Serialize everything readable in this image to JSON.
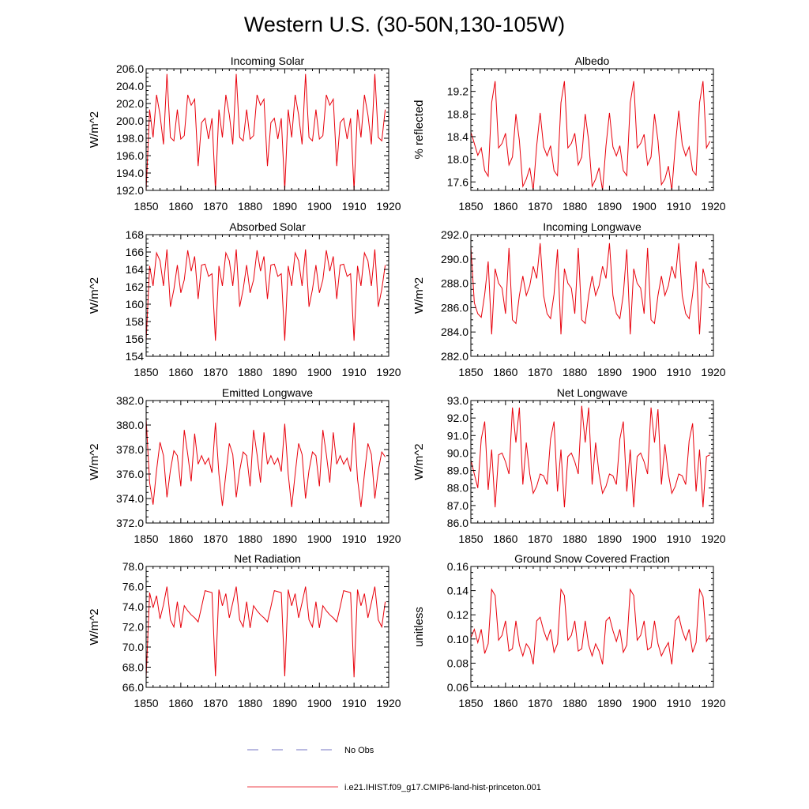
{
  "figure": {
    "title": "Western U.S. (30-50N,130-105W)"
  },
  "legend": {
    "items": [
      {
        "label": "No Obs",
        "color": "#4a4ab0",
        "style": "dashed"
      },
      {
        "label": "i.e21.IHIST.f09_g17.CMIP6-land-hist-princeton.001",
        "color": "#e8000b",
        "style": "solid"
      }
    ]
  },
  "chart_data": [
    {
      "type": "line",
      "title": "Incoming Solar",
      "xlabel": "",
      "ylabel": "W/m^2",
      "xlim": [
        1850,
        1920
      ],
      "ylim": [
        192,
        206
      ],
      "xticks": [
        1850,
        1860,
        1870,
        1880,
        1890,
        1900,
        1910,
        1920
      ],
      "yticks": [
        192,
        194,
        196,
        198,
        200,
        202,
        204,
        206
      ],
      "ytick_labels": [
        "192.0",
        "194.0",
        "196.0",
        "198.0",
        "200.0",
        "202.0",
        "204.0",
        "206.0"
      ],
      "grid": false,
      "series": [
        {
          "color": "#e8000b",
          "x_start": 1850,
          "x_step": 1,
          "values": [
            192.0,
            201.3,
            198.1,
            203.0,
            200.7,
            197.3,
            205.4,
            198.1,
            197.7,
            201.3,
            197.9,
            198.3,
            203.0,
            201.8,
            202.5,
            194.8,
            199.8,
            200.3,
            197.9,
            200.3,
            192.0,
            201.3,
            198.1,
            203.0,
            200.7,
            197.3,
            205.4,
            198.1,
            197.7,
            201.3,
            197.9,
            198.3,
            203.0,
            201.8,
            202.5,
            194.8,
            199.8,
            200.3,
            197.9,
            200.3,
            192.0,
            201.3,
            198.1,
            203.0,
            200.7,
            197.3,
            205.4,
            198.1,
            197.7,
            201.3,
            197.9,
            198.3,
            203.0,
            201.8,
            202.5,
            194.8,
            199.8,
            200.3,
            197.9,
            200.3,
            192.0,
            201.3,
            198.1,
            203.0,
            200.7,
            197.3,
            205.4,
            198.1,
            197.7,
            201.3
          ]
        }
      ]
    },
    {
      "type": "line",
      "title": "Albedo",
      "xlabel": "",
      "ylabel": "% reflected",
      "xlim": [
        1850,
        1920
      ],
      "ylim": [
        17.45,
        19.6
      ],
      "xticks": [
        1850,
        1860,
        1870,
        1880,
        1890,
        1900,
        1910,
        1920
      ],
      "yticks": [
        17.6,
        18.0,
        18.4,
        18.8,
        19.2
      ],
      "ytick_labels": [
        "17.6",
        "18.0",
        "18.4",
        "18.8",
        "19.2"
      ],
      "grid": false,
      "series": [
        {
          "color": "#e8000b",
          "x_start": 1850,
          "x_step": 1,
          "values": [
            18.48,
            18.28,
            18.07,
            18.2,
            17.8,
            17.7,
            19.0,
            19.38,
            18.2,
            18.28,
            18.46,
            17.9,
            18.04,
            18.8,
            18.33,
            17.52,
            17.65,
            17.85,
            17.45,
            18.24,
            18.82,
            18.22,
            18.06,
            18.24,
            17.8,
            17.71,
            19.0,
            19.38,
            18.2,
            18.28,
            18.46,
            17.9,
            18.04,
            18.8,
            18.33,
            17.52,
            17.65,
            17.85,
            17.45,
            18.24,
            18.82,
            18.22,
            18.06,
            18.24,
            17.8,
            17.71,
            19.0,
            19.38,
            18.2,
            18.28,
            18.44,
            17.9,
            18.04,
            18.8,
            18.33,
            17.55,
            17.65,
            17.88,
            17.45,
            18.24,
            18.86,
            18.26,
            18.06,
            18.22,
            17.8,
            17.72,
            19.0,
            19.38,
            18.2,
            18.32
          ]
        }
      ]
    },
    {
      "type": "line",
      "title": "Absorbed Solar",
      "xlabel": "",
      "ylabel": "W/m^2",
      "xlim": [
        1850,
        1920
      ],
      "ylim": [
        154,
        168
      ],
      "xticks": [
        1850,
        1860,
        1870,
        1880,
        1890,
        1900,
        1910,
        1920
      ],
      "yticks": [
        154,
        156,
        158,
        160,
        162,
        164,
        166,
        168
      ],
      "ytick_labels": [
        "154",
        "156",
        "158",
        "160",
        "162",
        "164",
        "166",
        "168"
      ],
      "grid": false,
      "series": [
        {
          "color": "#e8000b",
          "x_start": 1850,
          "x_step": 1,
          "values": [
            155.8,
            164.4,
            162.1,
            165.9,
            165.0,
            162.1,
            166.3,
            159.7,
            161.7,
            164.5,
            161.3,
            162.8,
            166.2,
            163.8,
            165.5,
            160.6,
            164.5,
            164.6,
            163.2,
            163.5,
            155.8,
            164.4,
            162.1,
            165.9,
            165.0,
            162.1,
            166.3,
            159.7,
            161.7,
            164.5,
            161.3,
            162.8,
            166.2,
            163.8,
            165.5,
            160.6,
            164.5,
            164.6,
            163.2,
            163.5,
            155.8,
            164.4,
            162.1,
            165.9,
            165.0,
            162.1,
            166.3,
            159.7,
            161.7,
            164.5,
            161.3,
            162.8,
            166.2,
            163.8,
            165.5,
            160.6,
            164.5,
            164.6,
            163.2,
            163.5,
            155.8,
            164.4,
            162.1,
            165.9,
            165.0,
            162.1,
            166.3,
            159.7,
            161.7,
            164.5
          ]
        }
      ]
    },
    {
      "type": "line",
      "title": "Incoming Longwave",
      "xlabel": "",
      "ylabel": "W/m^2",
      "xlim": [
        1850,
        1920
      ],
      "ylim": [
        282,
        292
      ],
      "xticks": [
        1850,
        1860,
        1870,
        1880,
        1890,
        1900,
        1910,
        1920
      ],
      "yticks": [
        282,
        284,
        286,
        288,
        290,
        292
      ],
      "ytick_labels": [
        "282.0",
        "284.0",
        "286.0",
        "288.0",
        "290.0",
        "292.0"
      ],
      "grid": false,
      "series": [
        {
          "color": "#e8000b",
          "x_start": 1850,
          "x_step": 1,
          "values": [
            291.0,
            286.4,
            285.5,
            285.2,
            287.1,
            289.8,
            283.8,
            289.2,
            288.0,
            287.6,
            285.5,
            290.9,
            285.0,
            284.7,
            287.0,
            288.6,
            287.0,
            287.8,
            289.4,
            288.4,
            291.3,
            287.0,
            285.5,
            285.1,
            287.1,
            290.8,
            283.8,
            289.2,
            288.0,
            287.6,
            285.5,
            290.9,
            285.0,
            284.7,
            287.0,
            288.6,
            287.0,
            287.8,
            289.4,
            288.4,
            291.3,
            287.0,
            285.5,
            285.1,
            287.1,
            290.8,
            283.8,
            289.2,
            288.0,
            287.6,
            285.5,
            290.9,
            285.0,
            284.7,
            287.0,
            288.6,
            287.0,
            287.8,
            289.4,
            288.4,
            291.3,
            287.0,
            285.5,
            285.1,
            287.1,
            289.8,
            283.8,
            289.2,
            288.0,
            287.6
          ]
        }
      ]
    },
    {
      "type": "line",
      "title": "Emitted Longwave",
      "xlabel": "",
      "ylabel": "W/m^2",
      "xlim": [
        1850,
        1920
      ],
      "ylim": [
        372,
        382
      ],
      "xticks": [
        1850,
        1860,
        1870,
        1880,
        1890,
        1900,
        1910,
        1920
      ],
      "yticks": [
        372,
        374,
        376,
        378,
        380,
        382
      ],
      "ytick_labels": [
        "372.0",
        "374.0",
        "376.0",
        "378.0",
        "380.0",
        "382.0"
      ],
      "grid": false,
      "series": [
        {
          "color": "#e8000b",
          "x_start": 1850,
          "x_step": 1,
          "values": [
            380.5,
            375.3,
            373.5,
            376.3,
            378.6,
            377.5,
            374.1,
            376.3,
            377.9,
            377.5,
            375.0,
            379.6,
            377.6,
            375.4,
            379.3,
            376.8,
            377.5,
            376.8,
            377.3,
            376.1,
            380.2,
            376.0,
            373.4,
            376.0,
            378.5,
            377.6,
            374.1,
            376.3,
            377.8,
            377.5,
            375.0,
            379.6,
            377.6,
            375.3,
            379.4,
            376.8,
            377.5,
            376.8,
            377.3,
            376.2,
            380.1,
            376.0,
            373.3,
            376.0,
            378.5,
            377.6,
            374.0,
            376.3,
            377.8,
            377.5,
            375.0,
            379.6,
            377.6,
            375.3,
            379.4,
            376.8,
            377.5,
            376.8,
            377.3,
            376.2,
            380.2,
            375.6,
            373.3,
            376.0,
            378.5,
            377.6,
            374.0,
            376.3,
            377.8,
            377.4
          ]
        }
      ]
    },
    {
      "type": "line",
      "title": "Net Longwave",
      "xlabel": "",
      "ylabel": "W/m^2",
      "xlim": [
        1850,
        1920
      ],
      "ylim": [
        86,
        93
      ],
      "xticks": [
        1850,
        1860,
        1870,
        1880,
        1890,
        1900,
        1910,
        1920
      ],
      "yticks": [
        86,
        87,
        88,
        89,
        90,
        91,
        92,
        93
      ],
      "ytick_labels": [
        "86.0",
        "87.0",
        "88.0",
        "89.0",
        "90.0",
        "91.0",
        "92.0",
        "93.0"
      ],
      "grid": false,
      "series": [
        {
          "color": "#e8000b",
          "x_start": 1850,
          "x_step": 1,
          "values": [
            89.6,
            88.8,
            88.0,
            90.8,
            91.8,
            87.9,
            90.2,
            86.9,
            89.9,
            90.0,
            89.5,
            88.8,
            92.6,
            90.6,
            92.6,
            88.2,
            90.6,
            88.8,
            87.7,
            88.1,
            88.8,
            88.7,
            88.2,
            90.8,
            91.8,
            87.8,
            90.2,
            86.9,
            89.8,
            90.0,
            89.5,
            88.8,
            92.7,
            90.6,
            92.6,
            88.2,
            90.6,
            88.8,
            87.7,
            88.1,
            88.8,
            88.7,
            88.2,
            90.8,
            91.8,
            87.8,
            90.2,
            86.9,
            89.8,
            90.0,
            89.5,
            88.8,
            92.6,
            90.6,
            92.5,
            88.2,
            90.5,
            88.8,
            87.7,
            88.1,
            88.8,
            88.7,
            88.2,
            90.7,
            91.7,
            87.8,
            90.2,
            86.9,
            89.8,
            89.9
          ]
        }
      ]
    },
    {
      "type": "line",
      "title": "Net Radiation",
      "xlabel": "",
      "ylabel": "W/m^2",
      "xlim": [
        1850,
        1920
      ],
      "ylim": [
        66,
        78
      ],
      "xticks": [
        1850,
        1860,
        1870,
        1880,
        1890,
        1900,
        1910,
        1920
      ],
      "yticks": [
        66,
        68,
        70,
        72,
        74,
        76,
        78
      ],
      "ytick_labels": [
        "66.0",
        "68.0",
        "70.0",
        "72.0",
        "74.0",
        "76.0",
        "78.0"
      ],
      "grid": false,
      "series": [
        {
          "color": "#e8000b",
          "x_start": 1850,
          "x_step": 1,
          "values": [
            67.0,
            75.4,
            73.9,
            75.1,
            72.8,
            74.2,
            76.0,
            72.7,
            72.0,
            74.5,
            71.9,
            74.1,
            73.6,
            73.2,
            72.9,
            72.5,
            74.0,
            75.6,
            75.5,
            75.4,
            67.1,
            75.7,
            74.1,
            75.3,
            72.9,
            74.4,
            76.0,
            72.7,
            72.0,
            74.5,
            71.9,
            74.1,
            73.6,
            73.2,
            72.9,
            72.5,
            74.0,
            75.6,
            75.5,
            75.4,
            67.1,
            75.7,
            74.1,
            75.3,
            72.9,
            74.4,
            76.0,
            72.7,
            72.0,
            74.5,
            71.9,
            74.1,
            73.6,
            73.2,
            72.9,
            72.5,
            74.0,
            75.6,
            75.5,
            75.4,
            67.0,
            75.7,
            74.1,
            75.3,
            72.9,
            74.4,
            76.0,
            72.7,
            72.0,
            74.5
          ]
        }
      ]
    },
    {
      "type": "line",
      "title": "Ground Snow Covered Fraction",
      "xlabel": "",
      "ylabel": "unitless",
      "xlim": [
        1850,
        1920
      ],
      "ylim": [
        0.06,
        0.16
      ],
      "xticks": [
        1850,
        1860,
        1870,
        1880,
        1890,
        1900,
        1910,
        1920
      ],
      "yticks": [
        0.06,
        0.08,
        0.1,
        0.12,
        0.14,
        0.16
      ],
      "ytick_labels": [
        "0.06",
        "0.08",
        "0.10",
        "0.12",
        "0.14",
        "0.16"
      ],
      "grid": false,
      "series": [
        {
          "color": "#e8000b",
          "x_start": 1850,
          "x_step": 1,
          "values": [
            0.101,
            0.108,
            0.097,
            0.108,
            0.088,
            0.096,
            0.141,
            0.136,
            0.099,
            0.103,
            0.115,
            0.09,
            0.092,
            0.115,
            0.095,
            0.086,
            0.096,
            0.092,
            0.079,
            0.115,
            0.118,
            0.107,
            0.099,
            0.108,
            0.089,
            0.096,
            0.141,
            0.136,
            0.099,
            0.103,
            0.115,
            0.09,
            0.092,
            0.115,
            0.095,
            0.086,
            0.096,
            0.09,
            0.079,
            0.115,
            0.118,
            0.107,
            0.098,
            0.108,
            0.089,
            0.095,
            0.141,
            0.136,
            0.099,
            0.103,
            0.115,
            0.091,
            0.093,
            0.115,
            0.096,
            0.086,
            0.092,
            0.097,
            0.079,
            0.115,
            0.119,
            0.107,
            0.099,
            0.108,
            0.089,
            0.097,
            0.141,
            0.135,
            0.098,
            0.103
          ]
        }
      ]
    }
  ]
}
